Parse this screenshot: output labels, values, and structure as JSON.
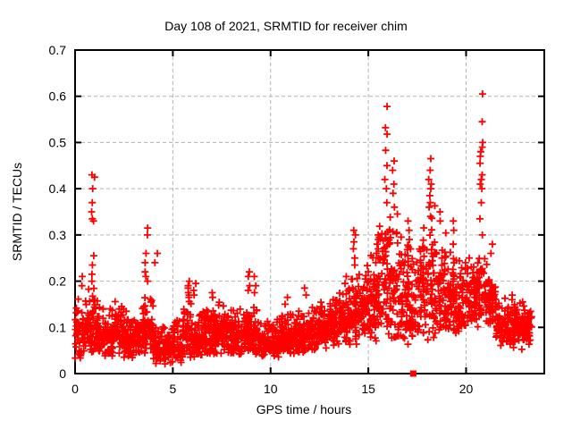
{
  "figure": {
    "background": "#ffffff"
  },
  "style": {
    "axis_color": "#000000",
    "grid_color": "#b3b3b3",
    "text_color": "#000000",
    "border_width": 2,
    "tick_length": 7
  },
  "chart_data": {
    "type": "scatter",
    "title": "Day 108 of 2021, SRMTID for receiver chim",
    "xlabel": "GPS time / hours",
    "ylabel": "SRMTID / TECUs",
    "xlim": [
      0,
      24
    ],
    "ylim": [
      0,
      0.7
    ],
    "xticks": {
      "values": [
        0,
        5,
        10,
        15,
        20
      ],
      "labels": [
        "0",
        "5",
        "10",
        "15",
        "20"
      ]
    },
    "yticks": {
      "values": [
        0,
        0.1,
        0.2,
        0.3,
        0.4,
        0.5,
        0.6,
        0.7
      ],
      "labels": [
        "0",
        "0.1",
        "0.2",
        "0.3",
        "0.4",
        "0.5",
        "0.6",
        "0.7"
      ]
    },
    "grid": "dashed",
    "legend": "none",
    "marker": "plus",
    "marker_size": 8,
    "marker_color": "#ff0000",
    "seed": 108,
    "flag_point": {
      "x": 17.3,
      "y": 0,
      "marker": "filled-square",
      "color": "#ff0000",
      "size": 7
    },
    "band_segments": [
      [
        0.0,
        0.5,
        55,
        0.03,
        0.17
      ],
      [
        0.5,
        1.0,
        55,
        0.04,
        0.19
      ],
      [
        1.0,
        1.5,
        55,
        0.04,
        0.16
      ],
      [
        1.5,
        2.0,
        55,
        0.03,
        0.15
      ],
      [
        2.0,
        2.5,
        55,
        0.04,
        0.16
      ],
      [
        2.5,
        3.0,
        55,
        0.03,
        0.14
      ],
      [
        3.0,
        3.5,
        55,
        0.04,
        0.15
      ],
      [
        3.5,
        4.0,
        55,
        0.04,
        0.17
      ],
      [
        4.0,
        4.5,
        50,
        0.02,
        0.12
      ],
      [
        4.5,
        5.0,
        50,
        0.02,
        0.11
      ],
      [
        5.0,
        5.5,
        50,
        0.015,
        0.12
      ],
      [
        5.5,
        6.0,
        55,
        0.03,
        0.16
      ],
      [
        6.0,
        6.5,
        55,
        0.03,
        0.14
      ],
      [
        6.5,
        7.0,
        55,
        0.04,
        0.15
      ],
      [
        7.0,
        7.5,
        55,
        0.04,
        0.16
      ],
      [
        7.5,
        8.0,
        55,
        0.04,
        0.15
      ],
      [
        8.0,
        8.5,
        55,
        0.03,
        0.14
      ],
      [
        8.5,
        9.0,
        55,
        0.04,
        0.16
      ],
      [
        9.0,
        9.5,
        55,
        0.04,
        0.15
      ],
      [
        9.5,
        10.0,
        50,
        0.03,
        0.12
      ],
      [
        10.0,
        10.5,
        50,
        0.03,
        0.12
      ],
      [
        10.5,
        11.0,
        55,
        0.04,
        0.14
      ],
      [
        11.0,
        11.5,
        55,
        0.04,
        0.15
      ],
      [
        11.5,
        12.0,
        55,
        0.04,
        0.14
      ],
      [
        12.0,
        12.5,
        55,
        0.05,
        0.15
      ],
      [
        12.5,
        13.0,
        55,
        0.05,
        0.16
      ],
      [
        13.0,
        13.5,
        55,
        0.06,
        0.17
      ],
      [
        13.5,
        14.0,
        55,
        0.06,
        0.19
      ],
      [
        14.0,
        14.5,
        55,
        0.06,
        0.22
      ],
      [
        14.5,
        15.0,
        55,
        0.07,
        0.25
      ],
      [
        15.0,
        15.5,
        55,
        0.07,
        0.3
      ],
      [
        15.5,
        16.0,
        55,
        0.08,
        0.35
      ],
      [
        16.0,
        16.5,
        55,
        0.07,
        0.38
      ],
      [
        16.5,
        17.0,
        55,
        0.06,
        0.33
      ],
      [
        17.0,
        17.5,
        55,
        0.06,
        0.3
      ],
      [
        17.5,
        18.0,
        55,
        0.07,
        0.35
      ],
      [
        18.0,
        18.5,
        55,
        0.07,
        0.38
      ],
      [
        18.5,
        19.0,
        55,
        0.08,
        0.32
      ],
      [
        19.0,
        19.5,
        55,
        0.07,
        0.3
      ],
      [
        19.5,
        20.0,
        50,
        0.08,
        0.26
      ],
      [
        20.0,
        20.5,
        55,
        0.1,
        0.27
      ],
      [
        20.5,
        21.0,
        55,
        0.1,
        0.28
      ],
      [
        21.0,
        21.5,
        55,
        0.1,
        0.26
      ],
      [
        21.5,
        22.0,
        50,
        0.06,
        0.18
      ],
      [
        22.0,
        22.5,
        55,
        0.05,
        0.16
      ],
      [
        22.5,
        23.0,
        55,
        0.05,
        0.17
      ],
      [
        23.0,
        23.35,
        35,
        0.06,
        0.15
      ]
    ],
    "spikes": [
      {
        "x": 0.35,
        "ys": [
          0.21,
          0.19
        ]
      },
      {
        "x": 0.92,
        "ys": [
          0.43,
          0.425,
          0.4,
          0.37,
          0.35,
          0.335,
          0.33,
          0.255,
          0.235,
          0.215,
          0.2
        ]
      },
      {
        "x": 3.65,
        "ys": [
          0.315,
          0.3,
          0.26,
          0.24,
          0.22,
          0.21,
          0.2
        ]
      },
      {
        "x": 4.15,
        "ys": [
          0.26,
          0.24
        ]
      },
      {
        "x": 5.85,
        "ys": [
          0.2,
          0.19,
          0.185,
          0.175,
          0.17,
          0.165
        ]
      },
      {
        "x": 6.1,
        "ys": [
          0.195,
          0.18,
          0.17
        ]
      },
      {
        "x": 7.0,
        "ys": [
          0.175,
          0.165
        ]
      },
      {
        "x": 8.9,
        "ys": [
          0.22,
          0.21,
          0.19,
          0.18
        ]
      },
      {
        "x": 9.2,
        "ys": [
          0.21,
          0.19,
          0.175
        ]
      },
      {
        "x": 10.8,
        "ys": [
          0.165,
          0.15
        ]
      },
      {
        "x": 11.8,
        "ys": [
          0.185,
          0.17
        ]
      },
      {
        "x": 13.8,
        "ys": [
          0.21,
          0.195
        ]
      },
      {
        "x": 14.3,
        "ys": [
          0.31,
          0.3,
          0.285,
          0.27,
          0.25,
          0.235
        ]
      },
      {
        "x": 15.45,
        "ys": [
          0.3,
          0.29,
          0.28,
          0.27,
          0.26,
          0.25,
          0.24
        ]
      },
      {
        "x": 15.9,
        "ys": [
          0.578,
          0.532,
          0.518,
          0.483,
          0.45,
          0.42,
          0.4,
          0.37
        ]
      },
      {
        "x": 16.3,
        "ys": [
          0.46,
          0.44,
          0.41,
          0.39,
          0.36
        ]
      },
      {
        "x": 17.1,
        "ys": [
          0.33,
          0.31,
          0.29
        ]
      },
      {
        "x": 18.15,
        "ys": [
          0.465,
          0.44,
          0.42,
          0.41,
          0.4,
          0.385,
          0.37,
          0.36
        ]
      },
      {
        "x": 18.6,
        "ys": [
          0.35,
          0.33
        ]
      },
      {
        "x": 19.3,
        "ys": [
          0.33,
          0.31,
          0.28
        ]
      },
      {
        "x": 20.78,
        "ys": [
          0.605,
          0.545,
          0.5,
          0.49,
          0.48,
          0.47,
          0.455,
          0.43,
          0.42,
          0.41,
          0.4,
          0.37,
          0.335,
          0.3
        ]
      },
      {
        "x": 21.3,
        "ys": [
          0.28,
          0.26
        ]
      },
      {
        "x": 22.3,
        "ys": [
          0.17,
          0.16
        ]
      }
    ]
  }
}
